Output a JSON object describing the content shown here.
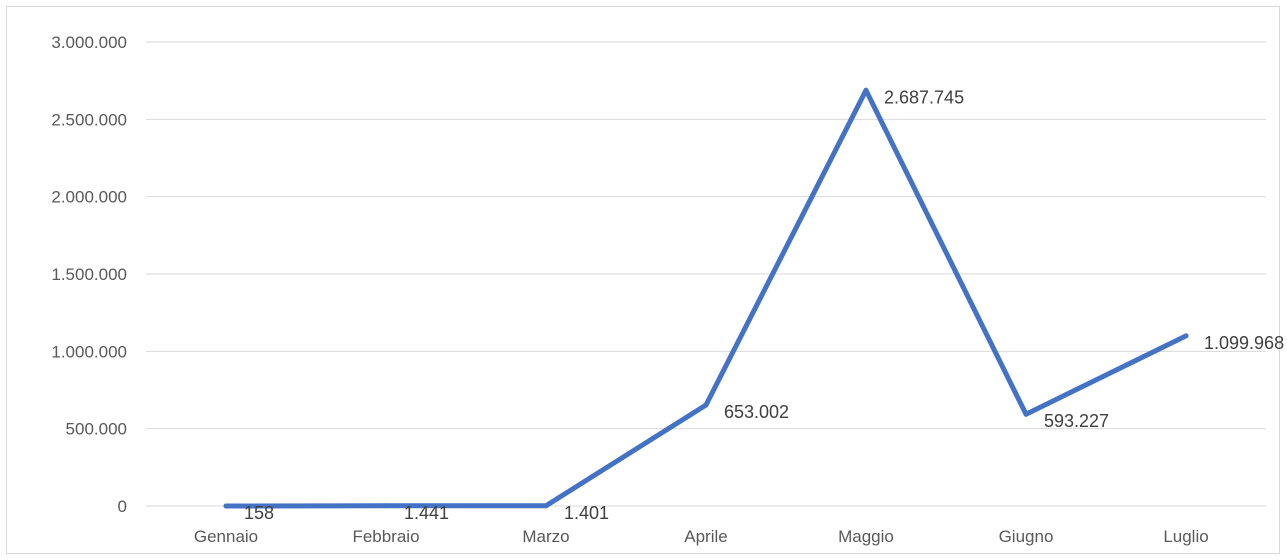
{
  "chart_data": {
    "type": "line",
    "title": "",
    "xlabel": "",
    "ylabel": "",
    "categories": [
      "Gennaio",
      "Febbraio",
      "Marzo",
      "Aprile",
      "Maggio",
      "Giugno",
      "Luglio"
    ],
    "series": [
      {
        "values": [
          158,
          1441,
          1401,
          653002,
          2687745,
          593227,
          1099968
        ],
        "labels": [
          "158",
          "1.441",
          "1.401",
          "653.002",
          "2.687.745",
          "593.227",
          "1.099.968"
        ],
        "color": "#4472C4"
      }
    ],
    "ylim": [
      0,
      3000000
    ],
    "yticks": [
      0,
      500000,
      1000000,
      1500000,
      2000000,
      2500000,
      3000000
    ],
    "ytick_labels": [
      "0",
      "500.000",
      "1.000.000",
      "1.500.000",
      "2.000.000",
      "2.500.000",
      "3.000.000"
    ],
    "grid": true,
    "legend": "none"
  }
}
